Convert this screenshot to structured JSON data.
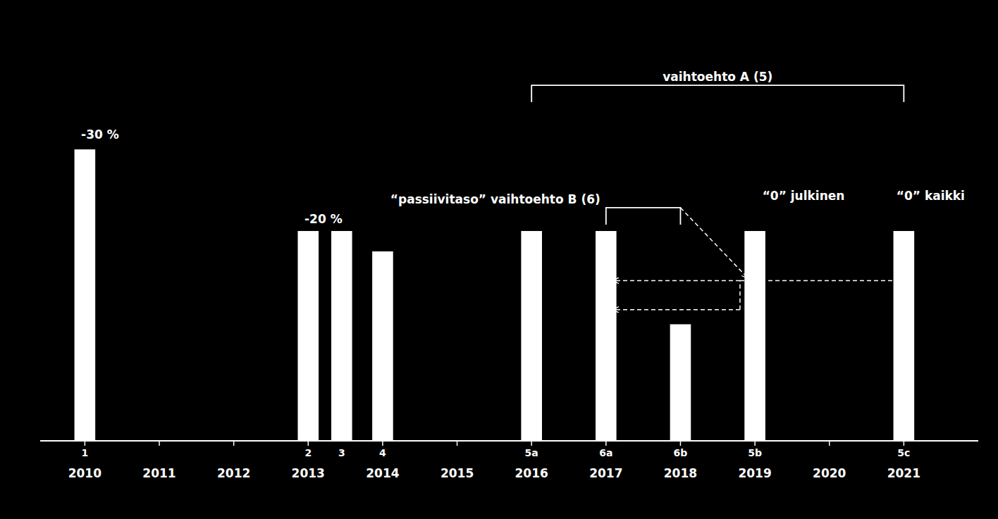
{
  "chart_data": {
    "type": "bar",
    "x": [
      2010,
      2013,
      2013.45,
      2014,
      2016,
      2017,
      2018,
      2019,
      2021
    ],
    "categories": [
      "1",
      "2",
      "3",
      "4",
      "5a",
      "6a",
      "6b",
      "5b",
      "5c"
    ],
    "values": [
      100,
      72,
      72,
      65,
      72,
      72,
      40,
      72,
      72
    ],
    "color": "#ffffff",
    "xlim": [
      2009.4,
      2022
    ],
    "xticks": [
      2010,
      2011,
      2012,
      2013,
      2014,
      2015,
      2016,
      2017,
      2018,
      2019,
      2020,
      2021
    ],
    "ylim": [
      0,
      130
    ],
    "tick_labels": "x",
    "grid": false,
    "annotations": [
      {
        "text": "-30 %",
        "x": 2009.95,
        "y": 103
      },
      {
        "text": "-20 %",
        "x": 2012.95,
        "y": 74
      },
      {
        "text": "“0” julkinen",
        "x": 2019.1,
        "y": 82
      },
      {
        "text": "“0” kaikki",
        "x": 2020.9,
        "y": 82
      }
    ],
    "brackets": [
      {
        "text": "vaihtoehto A (5)",
        "x1": 2016,
        "x2": 2021,
        "y": 122
      },
      {
        "text": "“passiivitaso” vaihtoehto B (6)",
        "x1": 2017,
        "x2": 2018,
        "y": 80
      }
    ],
    "arrows": [
      {
        "x": [
          2018,
          2018.9
        ],
        "y": [
          80,
          56
        ],
        "arrowhead": true
      },
      {
        "x": [
          2018.8,
          2017.1
        ],
        "y": [
          55,
          55
        ],
        "arrowhead": true
      },
      {
        "x": [
          2018.8,
          2018.8
        ],
        "y": [
          45,
          55
        ],
        "arrowhead": false
      },
      {
        "x": [
          2018.8,
          2017.1
        ],
        "y": [
          45,
          45
        ],
        "arrowhead": true
      },
      {
        "x": [
          2018.8,
          2021
        ],
        "y": [
          55,
          55
        ],
        "arrowhead": false
      }
    ]
  }
}
